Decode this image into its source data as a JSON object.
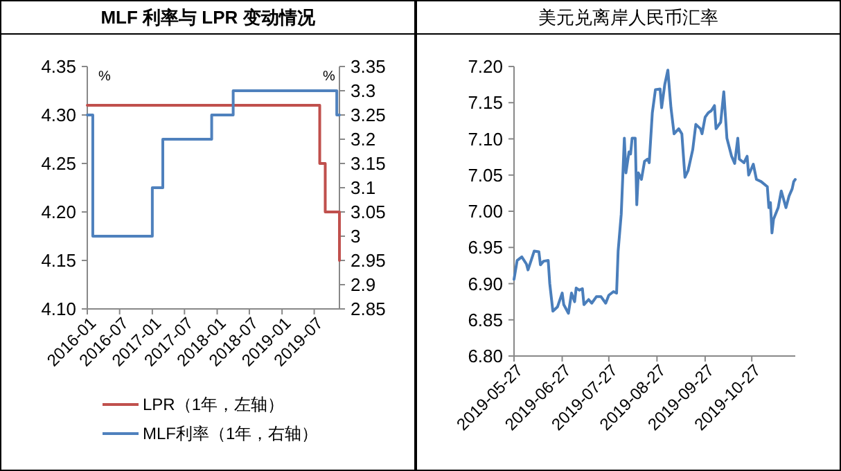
{
  "chart_data": [
    {
      "type": "step",
      "title": "MLF 利率与 LPR 变动情况",
      "xlim": [
        "2016-01",
        "2019-11-20"
      ],
      "xticks": [
        "2016-01",
        "2016-07",
        "2017-01",
        "2017-07",
        "2018-01",
        "2018-07",
        "2019-01",
        "2019-07"
      ],
      "ylim": [
        4.1,
        4.35
      ],
      "yticks": [
        {
          "value": 4.1,
          "label": "4.10"
        },
        {
          "value": 4.15,
          "label": "4.15"
        },
        {
          "value": 4.2,
          "label": "4.20"
        },
        {
          "value": 4.25,
          "label": "4.25"
        },
        {
          "value": 4.3,
          "label": "4.30"
        },
        {
          "value": 4.35,
          "label": "4.35"
        }
      ],
      "y2lim": [
        2.85,
        3.35
      ],
      "y2ticks": [
        2.85,
        2.9,
        2.95,
        3,
        3.05,
        3.1,
        3.15,
        3.2,
        3.25,
        3.3,
        3.35
      ],
      "annotations": [
        "%",
        "%"
      ],
      "legend": "bottom",
      "grid": false,
      "series": [
        {
          "name": "LPR（1年，左轴）",
          "color": "#c0504d",
          "x": [
            "2016-01",
            "2019-08",
            "2019-09",
            "2019-11-20"
          ],
          "values": [
            4.31,
            4.25,
            4.2,
            4.15
          ]
        },
        {
          "name": "MLF利率（1年，右轴）",
          "color": "#4f81bd",
          "axis": "y2",
          "x": [
            "2016-01",
            "2016-02",
            "2017-01",
            "2017-03",
            "2017-12",
            "2018-04",
            "2019-11-05",
            "2019-11-20"
          ],
          "values": [
            3.25,
            3.0,
            3.1,
            3.2,
            3.25,
            3.3,
            3.25,
            3.25
          ]
        }
      ]
    },
    {
      "type": "line",
      "title": "美元兑离岸人民币汇率",
      "xlim": [
        "2019-05-27",
        "2019-11-24"
      ],
      "xticks": [
        "2019-05-27",
        "2019-06-27",
        "2019-07-27",
        "2019-08-27",
        "2019-09-27",
        "2019-10-27"
      ],
      "ylim": [
        6.8,
        7.2
      ],
      "yticks": [
        {
          "value": 6.8,
          "label": "6.80"
        },
        {
          "value": 6.85,
          "label": "6.85"
        },
        {
          "value": 6.9,
          "label": "6.90"
        },
        {
          "value": 6.95,
          "label": "6.95"
        },
        {
          "value": 7.0,
          "label": "7.00"
        },
        {
          "value": 7.05,
          "label": "7.05"
        },
        {
          "value": 7.1,
          "label": "7.10"
        },
        {
          "value": 7.15,
          "label": "7.15"
        },
        {
          "value": 7.2,
          "label": "7.20"
        }
      ],
      "grid": false,
      "series": [
        {
          "color": "#4a7ebb",
          "x": [
            "2019-05-27",
            "2019-05-29",
            "2019-06-01",
            "2019-06-04",
            "2019-06-05",
            "2019-06-07",
            "2019-06-09",
            "2019-06-12",
            "2019-06-13",
            "2019-06-15",
            "2019-06-18",
            "2019-06-19",
            "2019-06-21",
            "2019-06-24",
            "2019-06-27",
            "2019-06-28",
            "2019-07-01",
            "2019-07-03",
            "2019-07-05",
            "2019-07-06",
            "2019-07-08",
            "2019-07-10",
            "2019-07-11",
            "2019-07-14",
            "2019-07-16",
            "2019-07-19",
            "2019-07-22",
            "2019-07-25",
            "2019-07-27",
            "2019-07-30",
            "2019-08-01",
            "2019-08-02",
            "2019-08-04",
            "2019-08-06",
            "2019-08-07",
            "2019-08-09",
            "2019-08-10",
            "2019-08-11",
            "2019-08-13",
            "2019-08-14",
            "2019-08-15",
            "2019-08-17",
            "2019-08-19",
            "2019-08-21",
            "2019-08-22",
            "2019-08-24",
            "2019-08-26",
            "2019-08-29",
            "2019-08-30",
            "2019-09-01",
            "2019-09-03",
            "2019-09-05",
            "2019-09-07",
            "2019-09-10",
            "2019-09-12",
            "2019-09-14",
            "2019-09-16",
            "2019-09-19",
            "2019-09-21",
            "2019-09-24",
            "2019-09-25",
            "2019-09-27",
            "2019-09-29",
            "2019-10-01",
            "2019-10-03",
            "2019-10-04",
            "2019-10-07",
            "2019-10-09",
            "2019-10-11",
            "2019-10-14",
            "2019-10-16",
            "2019-10-18",
            "2019-10-19",
            "2019-10-22",
            "2019-10-24",
            "2019-10-25",
            "2019-10-28",
            "2019-10-30",
            "2019-11-02",
            "2019-11-06",
            "2019-11-07",
            "2019-11-08",
            "2019-11-09",
            "2019-11-10",
            "2019-11-13",
            "2019-11-15",
            "2019-11-18",
            "2019-11-20",
            "2019-11-22",
            "2019-11-23",
            "2019-11-24"
          ],
          "values": [
            6.906,
            6.932,
            6.937,
            6.927,
            6.919,
            6.932,
            6.945,
            6.944,
            6.926,
            6.931,
            6.932,
            6.9,
            6.862,
            6.868,
            6.887,
            6.871,
            6.859,
            6.887,
            6.875,
            6.894,
            6.891,
            6.893,
            6.871,
            6.878,
            6.873,
            6.882,
            6.882,
            6.873,
            6.884,
            6.889,
            6.887,
            6.945,
            6.996,
            7.101,
            7.053,
            7.082,
            7.079,
            7.101,
            7.101,
            7.009,
            7.053,
            7.044,
            7.069,
            7.072,
            7.067,
            7.136,
            7.168,
            7.169,
            7.143,
            7.175,
            7.195,
            7.143,
            7.107,
            7.114,
            7.107,
            7.047,
            7.056,
            7.085,
            7.12,
            7.114,
            7.107,
            7.13,
            7.136,
            7.139,
            7.146,
            7.114,
            7.123,
            7.165,
            7.101,
            7.076,
            7.066,
            7.101,
            7.072,
            7.067,
            7.076,
            7.05,
            7.065,
            7.044,
            7.041,
            7.034,
            7.005,
            7.012,
            6.97,
            6.989,
            7.005,
            7.028,
            7.005,
            7.021,
            7.031,
            7.041,
            7.044
          ]
        }
      ]
    }
  ]
}
